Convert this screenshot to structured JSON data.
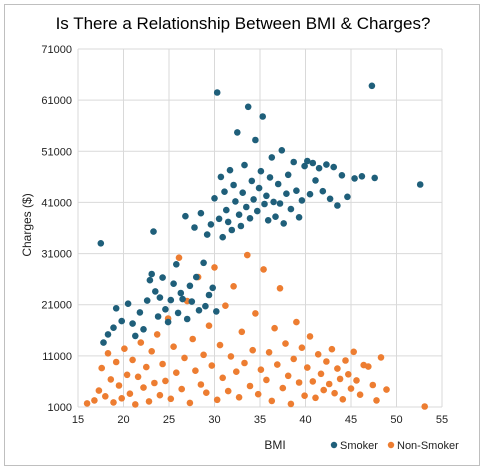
{
  "chart_data": {
    "type": "scatter",
    "title": "Is There a Relationship Between BMI & Charges?",
    "xlabel": "BMI",
    "ylabel": "Charges ($)",
    "xlim": [
      15,
      55
    ],
    "ylim": [
      1000,
      71000
    ],
    "x_ticks": [
      15,
      20,
      25,
      30,
      35,
      40,
      45,
      50,
      55
    ],
    "y_ticks": [
      1000,
      11000,
      21000,
      31000,
      41000,
      51000,
      61000,
      71000
    ],
    "grid": true,
    "legend_position": "bottom-right",
    "colors": {
      "smoker": "#1f5f7a",
      "non_smoker": "#ed7d31"
    },
    "series": [
      {
        "name": "Smoker",
        "color": "#1f5f7a",
        "points": [
          [
            17.5,
            33000
          ],
          [
            17.8,
            13600
          ],
          [
            18.3,
            15200
          ],
          [
            18.9,
            16500
          ],
          [
            19.2,
            20300
          ],
          [
            19.8,
            17800
          ],
          [
            20.5,
            21200
          ],
          [
            21.0,
            17300
          ],
          [
            21.3,
            14900
          ],
          [
            21.8,
            19500
          ],
          [
            22.2,
            16200
          ],
          [
            22.6,
            21800
          ],
          [
            22.9,
            25800
          ],
          [
            23.1,
            27000
          ],
          [
            23.3,
            35300
          ],
          [
            23.5,
            23600
          ],
          [
            23.8,
            18700
          ],
          [
            24.0,
            22400
          ],
          [
            24.3,
            26300
          ],
          [
            24.6,
            20100
          ],
          [
            24.9,
            17600
          ],
          [
            25.2,
            21900
          ],
          [
            25.5,
            25100
          ],
          [
            25.8,
            28900
          ],
          [
            26.0,
            19400
          ],
          [
            26.3,
            23300
          ],
          [
            26.5,
            22100
          ],
          [
            26.8,
            38300
          ],
          [
            27.0,
            18200
          ],
          [
            27.3,
            24700
          ],
          [
            27.5,
            21600
          ],
          [
            27.8,
            36100
          ],
          [
            28.0,
            26400
          ],
          [
            28.3,
            19900
          ],
          [
            28.5,
            38900
          ],
          [
            28.8,
            29200
          ],
          [
            29.0,
            20700
          ],
          [
            29.2,
            34700
          ],
          [
            29.4,
            22900
          ],
          [
            29.6,
            36700
          ],
          [
            29.8,
            24300
          ],
          [
            30.0,
            41800
          ],
          [
            30.2,
            19700
          ],
          [
            30.3,
            62500
          ],
          [
            30.5,
            37800
          ],
          [
            30.7,
            46000
          ],
          [
            30.9,
            34200
          ],
          [
            31.1,
            43100
          ],
          [
            31.3,
            39500
          ],
          [
            31.5,
            37200
          ],
          [
            31.7,
            47300
          ],
          [
            31.9,
            35600
          ],
          [
            32.1,
            44400
          ],
          [
            32.3,
            41200
          ],
          [
            32.5,
            54700
          ],
          [
            32.7,
            38600
          ],
          [
            32.9,
            36400
          ],
          [
            33.1,
            42900
          ],
          [
            33.3,
            48300
          ],
          [
            33.5,
            40100
          ],
          [
            33.7,
            59700
          ],
          [
            33.9,
            37900
          ],
          [
            34.1,
            45200
          ],
          [
            34.3,
            41600
          ],
          [
            34.5,
            53200
          ],
          [
            34.7,
            39300
          ],
          [
            34.9,
            43800
          ],
          [
            35.1,
            47100
          ],
          [
            35.3,
            57800
          ],
          [
            35.5,
            40700
          ],
          [
            35.7,
            42300
          ],
          [
            35.9,
            37500
          ],
          [
            36.1,
            45900
          ],
          [
            36.3,
            49800
          ],
          [
            36.5,
            41100
          ],
          [
            36.7,
            38200
          ],
          [
            37.0,
            44600
          ],
          [
            37.2,
            40800
          ],
          [
            37.4,
            51200
          ],
          [
            37.6,
            36900
          ],
          [
            37.9,
            42700
          ],
          [
            38.1,
            46400
          ],
          [
            38.4,
            39700
          ],
          [
            38.7,
            48900
          ],
          [
            39.0,
            43300
          ],
          [
            39.3,
            38100
          ],
          [
            39.6,
            41400
          ],
          [
            39.9,
            48100
          ],
          [
            40.2,
            49100
          ],
          [
            40.5,
            42600
          ],
          [
            40.8,
            48700
          ],
          [
            41.1,
            45300
          ],
          [
            41.5,
            47700
          ],
          [
            41.9,
            43200
          ],
          [
            42.3,
            48400
          ],
          [
            42.7,
            41700
          ],
          [
            43.1,
            47900
          ],
          [
            43.5,
            40400
          ],
          [
            44.0,
            46300
          ],
          [
            44.6,
            42100
          ],
          [
            45.4,
            45700
          ],
          [
            46.2,
            46100
          ],
          [
            47.3,
            63800
          ],
          [
            47.6,
            45800
          ],
          [
            52.6,
            44500
          ]
        ]
      },
      {
        "name": "Non-Smoker",
        "color": "#ed7d31",
        "points": [
          [
            16.0,
            1700
          ],
          [
            16.8,
            2300
          ],
          [
            17.3,
            4200
          ],
          [
            17.6,
            8600
          ],
          [
            18.0,
            3100
          ],
          [
            18.3,
            11500
          ],
          [
            18.6,
            6400
          ],
          [
            18.9,
            1900
          ],
          [
            19.2,
            9800
          ],
          [
            19.5,
            5200
          ],
          [
            19.8,
            2700
          ],
          [
            20.1,
            12400
          ],
          [
            20.4,
            7300
          ],
          [
            20.7,
            3600
          ],
          [
            21.0,
            10200
          ],
          [
            21.3,
            1500
          ],
          [
            21.6,
            6900
          ],
          [
            21.9,
            13600
          ],
          [
            22.2,
            4800
          ],
          [
            22.5,
            8800
          ],
          [
            22.8,
            2100
          ],
          [
            23.1,
            11900
          ],
          [
            23.4,
            5700
          ],
          [
            23.7,
            15200
          ],
          [
            24.0,
            3300
          ],
          [
            24.3,
            9400
          ],
          [
            24.6,
            6100
          ],
          [
            24.9,
            18300
          ],
          [
            25.2,
            2600
          ],
          [
            25.5,
            12800
          ],
          [
            25.8,
            7700
          ],
          [
            26.1,
            30200
          ],
          [
            26.4,
            4500
          ],
          [
            26.7,
            10600
          ],
          [
            27.0,
            21700
          ],
          [
            27.3,
            1800
          ],
          [
            27.6,
            14300
          ],
          [
            27.9,
            8100
          ],
          [
            28.2,
            26400
          ],
          [
            28.5,
            5400
          ],
          [
            28.8,
            11200
          ],
          [
            29.1,
            3800
          ],
          [
            29.4,
            16900
          ],
          [
            29.7,
            9100
          ],
          [
            30.0,
            28300
          ],
          [
            30.3,
            2400
          ],
          [
            30.6,
            13100
          ],
          [
            30.9,
            6700
          ],
          [
            31.2,
            20800
          ],
          [
            31.5,
            4100
          ],
          [
            31.8,
            10900
          ],
          [
            32.1,
            24600
          ],
          [
            32.4,
            7900
          ],
          [
            32.7,
            2900
          ],
          [
            33.0,
            15700
          ],
          [
            33.3,
            9600
          ],
          [
            33.6,
            30700
          ],
          [
            33.9,
            5100
          ],
          [
            34.2,
            12100
          ],
          [
            34.5,
            19300
          ],
          [
            34.8,
            3500
          ],
          [
            35.1,
            8300
          ],
          [
            35.4,
            27900
          ],
          [
            35.7,
            6300
          ],
          [
            36.0,
            11700
          ],
          [
            36.3,
            2200
          ],
          [
            36.6,
            16400
          ],
          [
            36.9,
            9300
          ],
          [
            37.2,
            24200
          ],
          [
            37.5,
            4700
          ],
          [
            37.8,
            13400
          ],
          [
            38.1,
            7100
          ],
          [
            38.4,
            1600
          ],
          [
            38.7,
            10400
          ],
          [
            39.0,
            17600
          ],
          [
            39.3,
            5800
          ],
          [
            39.6,
            12600
          ],
          [
            39.9,
            3200
          ],
          [
            40.2,
            8700
          ],
          [
            40.5,
            14800
          ],
          [
            40.8,
            6000
          ],
          [
            41.1,
            2800
          ],
          [
            41.4,
            11300
          ],
          [
            41.7,
            7500
          ],
          [
            42.0,
            4300
          ],
          [
            42.3,
            9900
          ],
          [
            42.6,
            5500
          ],
          [
            42.9,
            12300
          ],
          [
            43.2,
            3700
          ],
          [
            43.5,
            8500
          ],
          [
            43.8,
            6500
          ],
          [
            44.1,
            2500
          ],
          [
            44.4,
            10100
          ],
          [
            44.7,
            7400
          ],
          [
            45.0,
            4600
          ],
          [
            45.3,
            11800
          ],
          [
            45.6,
            6200
          ],
          [
            46.0,
            3400
          ],
          [
            46.4,
            9200
          ],
          [
            46.9,
            8900
          ],
          [
            47.4,
            5300
          ],
          [
            47.8,
            2300
          ],
          [
            48.3,
            10700
          ],
          [
            48.9,
            4400
          ],
          [
            53.1,
            1100
          ]
        ]
      }
    ]
  }
}
